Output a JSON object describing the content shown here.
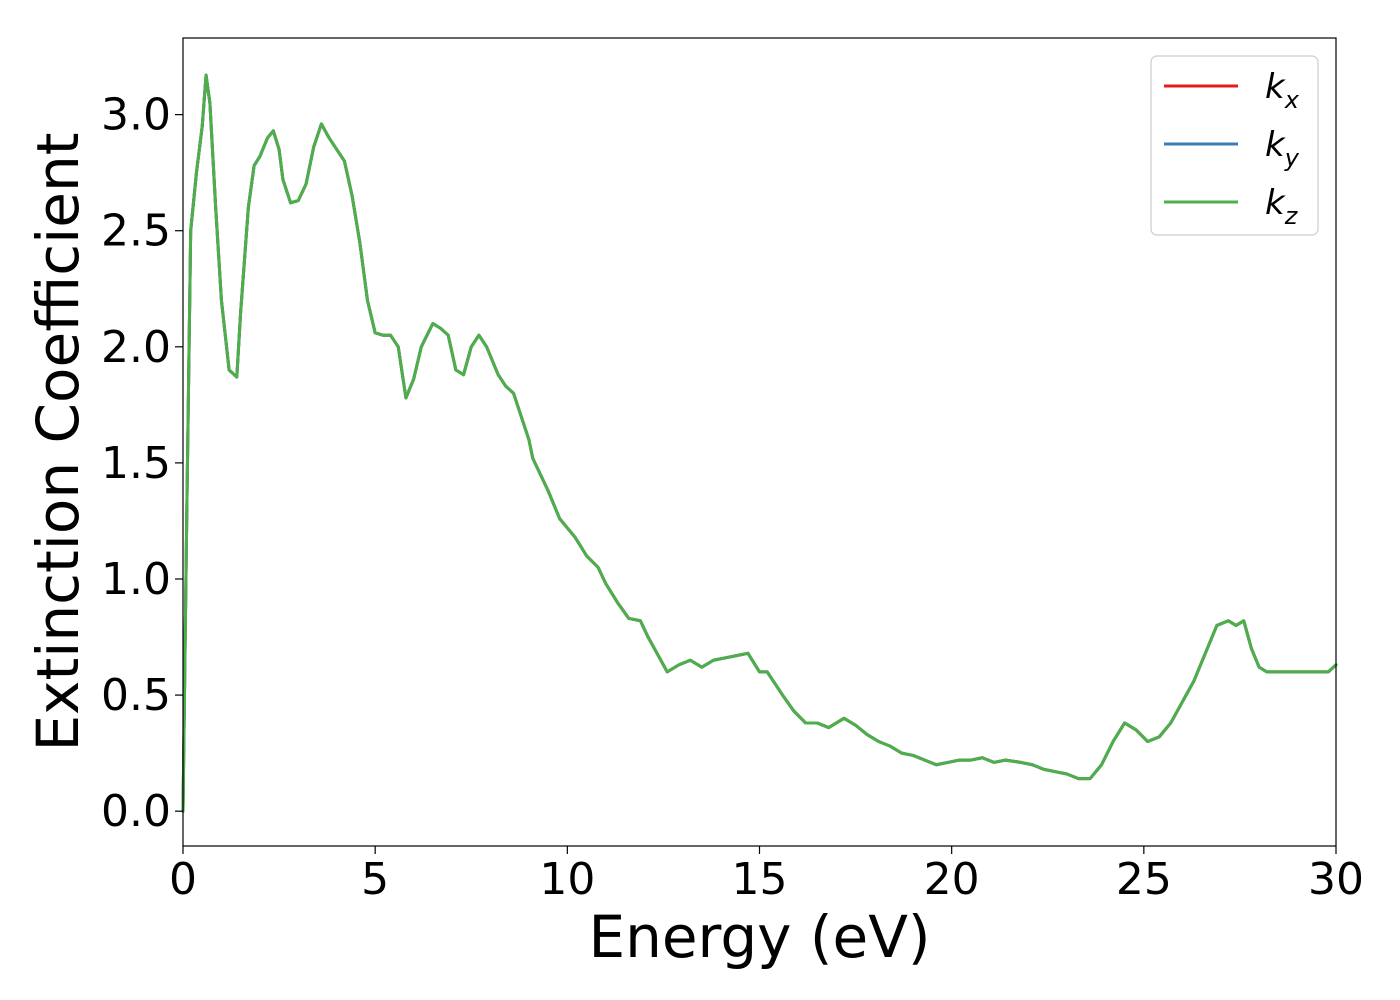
{
  "chart_data": {
    "type": "line",
    "title": "",
    "xlabel": "Energy (eV)",
    "ylabel": "Extinction Coefficient",
    "xlim": [
      0,
      30
    ],
    "ylim": [
      -0.15,
      3.33
    ],
    "xticks": [
      0,
      5,
      10,
      15,
      20,
      25,
      30
    ],
    "xtick_labels": [
      "0",
      "5",
      "10",
      "15",
      "20",
      "25",
      "30"
    ],
    "yticks": [
      0.0,
      0.5,
      1.0,
      1.5,
      2.0,
      2.5,
      3.0
    ],
    "ytick_labels": [
      "0.0",
      "0.5",
      "1.0",
      "1.5",
      "2.0",
      "2.5",
      "3.0"
    ],
    "grid": false,
    "legend_position": "top-right",
    "x": [
      0.0,
      0.1,
      0.2,
      0.35,
      0.5,
      0.6,
      0.7,
      0.85,
      1.0,
      1.2,
      1.4,
      1.5,
      1.7,
      1.85,
      2.0,
      2.2,
      2.35,
      2.5,
      2.6,
      2.8,
      3.0,
      3.2,
      3.4,
      3.6,
      3.8,
      4.0,
      4.2,
      4.4,
      4.6,
      4.8,
      5.0,
      5.2,
      5.4,
      5.6,
      5.8,
      6.0,
      6.2,
      6.5,
      6.7,
      6.9,
      7.1,
      7.3,
      7.5,
      7.7,
      7.9,
      8.2,
      8.4,
      8.6,
      8.8,
      9.0,
      9.1,
      9.3,
      9.5,
      9.8,
      10.0,
      10.2,
      10.5,
      10.8,
      11.0,
      11.3,
      11.6,
      11.9,
      12.1,
      12.4,
      12.6,
      12.9,
      13.2,
      13.5,
      13.8,
      14.1,
      14.4,
      14.7,
      15.0,
      15.2,
      15.4,
      15.6,
      15.9,
      16.2,
      16.5,
      16.8,
      17.0,
      17.2,
      17.5,
      17.8,
      18.1,
      18.4,
      18.7,
      19.0,
      19.3,
      19.6,
      19.9,
      20.2,
      20.5,
      20.8,
      21.1,
      21.4,
      21.8,
      22.1,
      22.4,
      22.7,
      23.0,
      23.3,
      23.6,
      23.9,
      24.2,
      24.5,
      24.8,
      25.1,
      25.4,
      25.7,
      26.0,
      26.3,
      26.6,
      26.9,
      27.2,
      27.4,
      27.6,
      27.8,
      28.0,
      28.2,
      28.5,
      28.8,
      29.0,
      29.2,
      29.4,
      29.6,
      29.8,
      30.0
    ],
    "y": [
      0.0,
      1.3,
      2.5,
      2.75,
      2.95,
      3.17,
      3.05,
      2.6,
      2.2,
      1.9,
      1.87,
      2.15,
      2.6,
      2.78,
      2.82,
      2.9,
      2.93,
      2.85,
      2.72,
      2.62,
      2.63,
      2.7,
      2.86,
      2.96,
      2.9,
      2.85,
      2.8,
      2.65,
      2.45,
      2.2,
      2.06,
      2.05,
      2.05,
      2.0,
      1.78,
      1.86,
      2.0,
      2.1,
      2.08,
      2.05,
      1.9,
      1.88,
      2.0,
      2.05,
      2.0,
      1.88,
      1.83,
      1.8,
      1.7,
      1.6,
      1.52,
      1.45,
      1.38,
      1.26,
      1.22,
      1.18,
      1.1,
      1.05,
      0.98,
      0.9,
      0.83,
      0.82,
      0.75,
      0.66,
      0.6,
      0.63,
      0.65,
      0.62,
      0.65,
      0.66,
      0.67,
      0.68,
      0.6,
      0.6,
      0.55,
      0.5,
      0.43,
      0.38,
      0.38,
      0.36,
      0.38,
      0.4,
      0.37,
      0.33,
      0.3,
      0.28,
      0.25,
      0.24,
      0.22,
      0.2,
      0.21,
      0.22,
      0.22,
      0.23,
      0.21,
      0.22,
      0.21,
      0.2,
      0.18,
      0.17,
      0.16,
      0.14,
      0.14,
      0.2,
      0.3,
      0.38,
      0.35,
      0.3,
      0.32,
      0.38,
      0.47,
      0.56,
      0.68,
      0.8,
      0.82,
      0.8,
      0.82,
      0.7,
      0.62,
      0.6,
      0.6,
      0.6,
      0.6,
      0.6,
      0.6,
      0.6,
      0.6,
      0.63
    ],
    "series": [
      {
        "name": "k",
        "subscript": "x",
        "color": "#e41a1c"
      },
      {
        "name": "k",
        "subscript": "y",
        "color": "#377eb8"
      },
      {
        "name": "k",
        "subscript": "z",
        "color": "#4daf4a"
      }
    ]
  }
}
